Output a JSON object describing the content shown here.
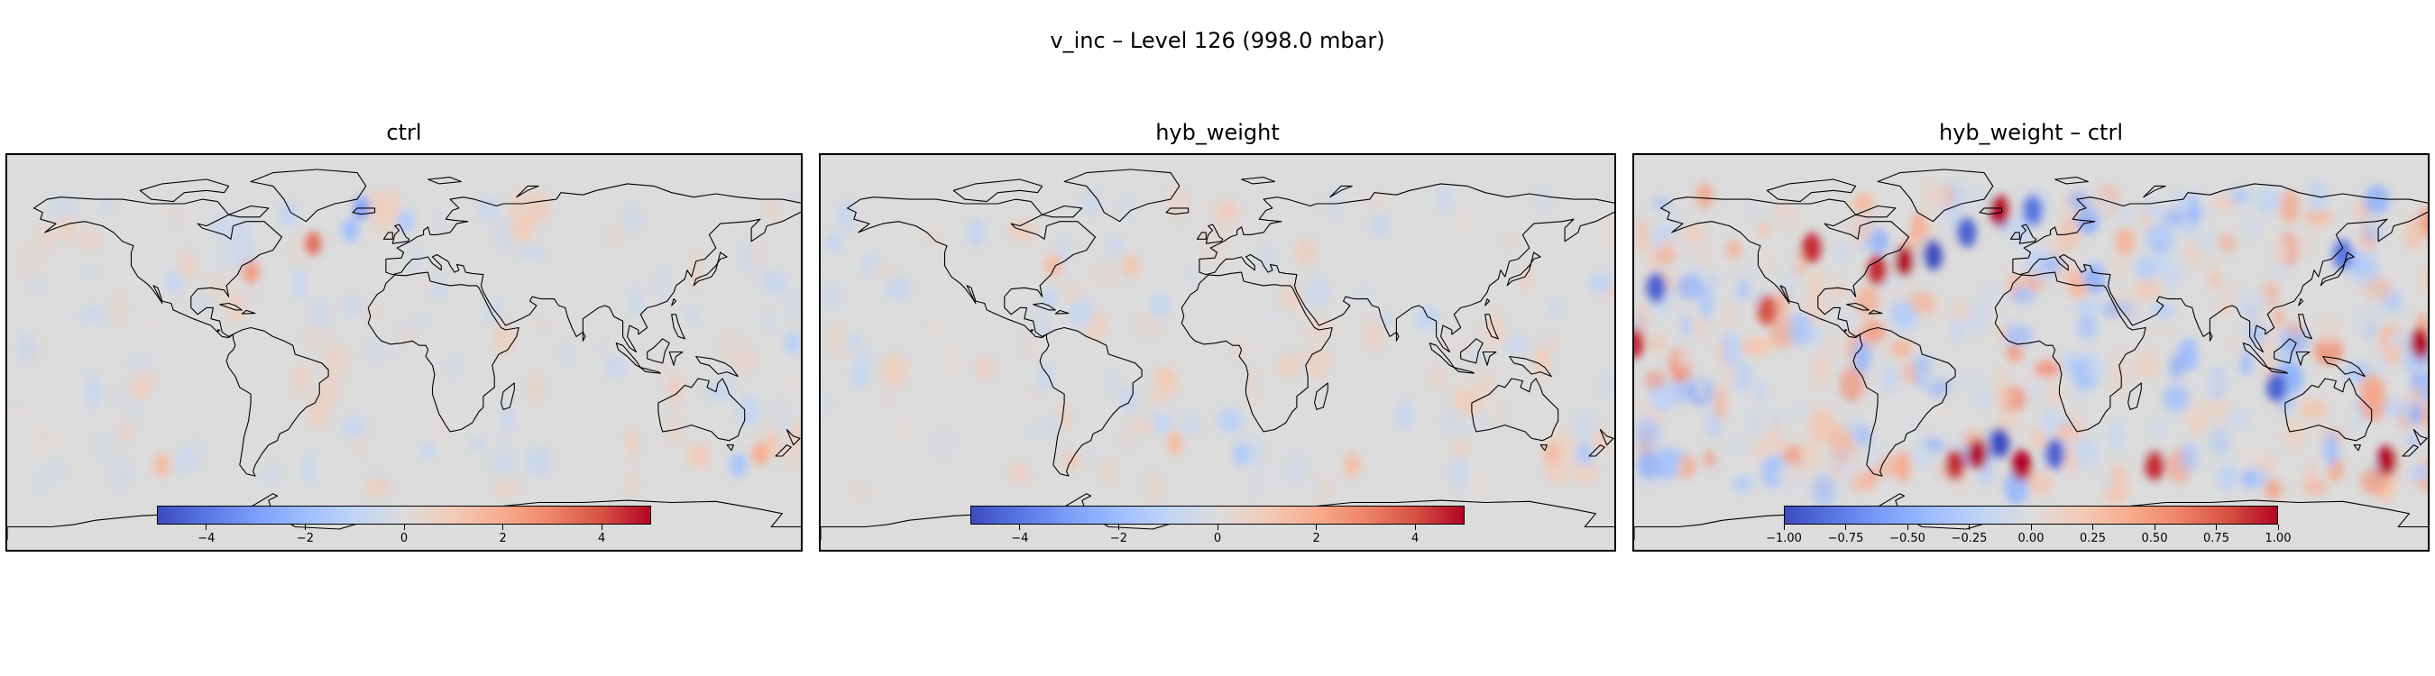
{
  "figure": {
    "suptitle": "v_inc – Level 126 (998.0 mbar)"
  },
  "colormap": {
    "name": "coolwarm",
    "stops": [
      "#3b4cc0",
      "#5977e3",
      "#7b9ff9",
      "#9ebeff",
      "#c0d4f5",
      "#dddcdc",
      "#f2cbb7",
      "#f7ac8e",
      "#ee8468",
      "#d65244",
      "#b40426"
    ]
  },
  "colors": {
    "ocean_land_neutral": "#dcdcdc",
    "coastline": "#000000",
    "frame": "#000000"
  },
  "chart_data": [
    {
      "type": "heatmap",
      "title": "ctrl",
      "projection": "global lat-lon map with coastlines",
      "xlim": [
        -180,
        180
      ],
      "ylim": [
        -90,
        90
      ],
      "colorbar": {
        "vmin": -5,
        "vmax": 5,
        "ticks": [
          "−4",
          "−2",
          "0",
          "2",
          "4"
        ],
        "tick_values": [
          -4,
          -2,
          0,
          2,
          4
        ]
      },
      "notable_anomalies": [
        {
          "lon": -42,
          "lat": 50,
          "value": 3.5
        },
        {
          "lon": -70,
          "lat": 37,
          "value": 2.5
        },
        {
          "lon": -20,
          "lat": 66,
          "value": -3.0
        },
        {
          "lon": -25,
          "lat": 56,
          "value": -2.0
        },
        {
          "lon": 0,
          "lat": 60,
          "value": -1.5
        },
        {
          "lon": -110,
          "lat": -50,
          "value": 1.5
        },
        {
          "lon": 160,
          "lat": -45,
          "value": 2.0
        },
        {
          "lon": 150,
          "lat": -50,
          "value": -1.8
        },
        {
          "lon": 175,
          "lat": 5,
          "value": -1.2
        }
      ]
    },
    {
      "type": "heatmap",
      "title": "hyb_weight",
      "projection": "global lat-lon map with coastlines",
      "xlim": [
        -180,
        180
      ],
      "ylim": [
        -90,
        90
      ],
      "colorbar": {
        "vmin": -5,
        "vmax": 5,
        "ticks": [
          "−4",
          "−2",
          "0",
          "2",
          "4"
        ],
        "tick_values": [
          -4,
          -2,
          0,
          2,
          4
        ]
      },
      "notable_anomalies": [
        {
          "lon": -75,
          "lat": 40,
          "value": 1.5
        },
        {
          "lon": -40,
          "lat": 40,
          "value": 1.2
        },
        {
          "lon": -20,
          "lat": -40,
          "value": 1.5
        },
        {
          "lon": 10,
          "lat": -45,
          "value": -1.5
        },
        {
          "lon": 60,
          "lat": -50,
          "value": 1.5
        },
        {
          "lon": 150,
          "lat": -45,
          "value": 1.5
        },
        {
          "lon": 165,
          "lat": -45,
          "value": -1.5
        }
      ]
    },
    {
      "type": "heatmap",
      "title": "hyb_weight – ctrl",
      "projection": "global lat-lon map with coastlines",
      "xlim": [
        -180,
        180
      ],
      "ylim": [
        -90,
        90
      ],
      "colorbar": {
        "vmin": -1,
        "vmax": 1,
        "ticks": [
          "−1.00",
          "−0.75",
          "−0.50",
          "−0.25",
          "0.00",
          "0.25",
          "0.50",
          "0.75",
          "1.00"
        ],
        "tick_values": [
          -1,
          -0.75,
          -0.5,
          -0.25,
          0,
          0.25,
          0.5,
          0.75,
          1
        ]
      },
      "notable_anomalies": [
        {
          "lon": -58,
          "lat": 42,
          "value": 1.0
        },
        {
          "lon": -70,
          "lat": 38,
          "value": 0.9
        },
        {
          "lon": -45,
          "lat": 45,
          "value": -1.0
        },
        {
          "lon": -30,
          "lat": 55,
          "value": -0.9
        },
        {
          "lon": -15,
          "lat": 65,
          "value": 1.0
        },
        {
          "lon": 0,
          "lat": 65,
          "value": -0.8
        },
        {
          "lon": -100,
          "lat": 48,
          "value": 0.9
        },
        {
          "lon": -170,
          "lat": 30,
          "value": -0.9
        },
        {
          "lon": -120,
          "lat": 20,
          "value": 0.8
        },
        {
          "lon": -180,
          "lat": 5,
          "value": 0.9
        },
        {
          "lon": -25,
          "lat": -45,
          "value": 1.0
        },
        {
          "lon": -15,
          "lat": -40,
          "value": -1.0
        },
        {
          "lon": -5,
          "lat": -50,
          "value": 1.0
        },
        {
          "lon": 10,
          "lat": -45,
          "value": -0.9
        },
        {
          "lon": -35,
          "lat": -50,
          "value": 0.9
        },
        {
          "lon": 55,
          "lat": -50,
          "value": 0.9
        },
        {
          "lon": 110,
          "lat": -15,
          "value": -0.9
        },
        {
          "lon": 160,
          "lat": -48,
          "value": 1.0
        },
        {
          "lon": 175,
          "lat": 5,
          "value": 1.0
        },
        {
          "lon": 140,
          "lat": 45,
          "value": -0.8
        }
      ]
    }
  ]
}
